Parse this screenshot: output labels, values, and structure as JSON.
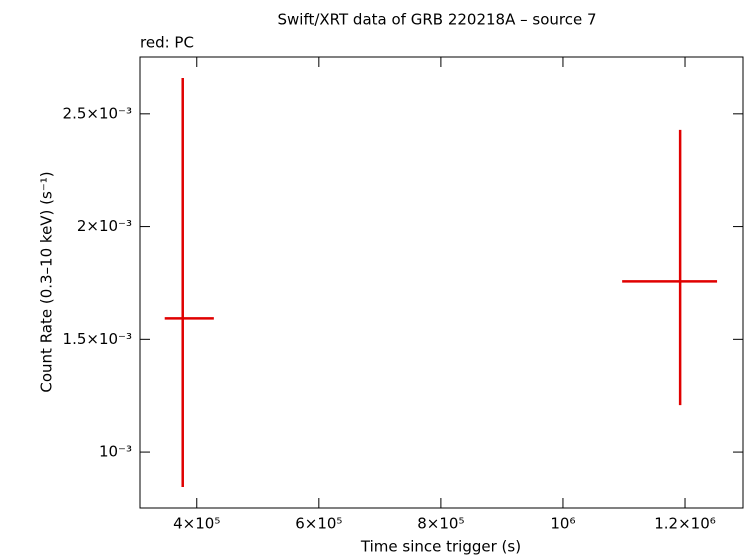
{
  "chart_data": {
    "type": "errorbar",
    "title": "Swift/XRT data of GRB 220218A – source 7",
    "subtitle": "red: PC",
    "x_label": "Time since trigger (s)",
    "y_label": "Count Rate (0.3–10 keV) (s⁻¹)",
    "color": "#e00000",
    "x": [
      377000,
      1192000
    ],
    "xerr_minus": [
      29500,
      95000
    ],
    "xerr_plus": [
      51000,
      60500
    ],
    "values": [
      0.001593,
      0.001757
    ],
    "yerr_minus": [
      0.000748,
      0.000549
    ],
    "yerr_plus": [
      0.001066,
      0.000672
    ],
    "xlim": [
      307000,
      1295000
    ],
    "ylim": [
      0.000752,
      0.002752
    ],
    "xticks": [
      {
        "value": 400000,
        "label": "4×10⁵"
      },
      {
        "value": 600000,
        "label": "6×10⁵"
      },
      {
        "value": 800000,
        "label": "8×10⁵"
      },
      {
        "value": 1000000,
        "label": "10⁶"
      },
      {
        "value": 1200000,
        "label": "1.2×10⁶"
      }
    ],
    "yticks": [
      {
        "value": 0.001,
        "label": "10⁻³"
      },
      {
        "value": 0.0015,
        "label": "1.5×10⁻³"
      },
      {
        "value": 0.002,
        "label": "2×10⁻³"
      },
      {
        "value": 0.0025,
        "label": "2.5×10⁻³"
      }
    ]
  }
}
